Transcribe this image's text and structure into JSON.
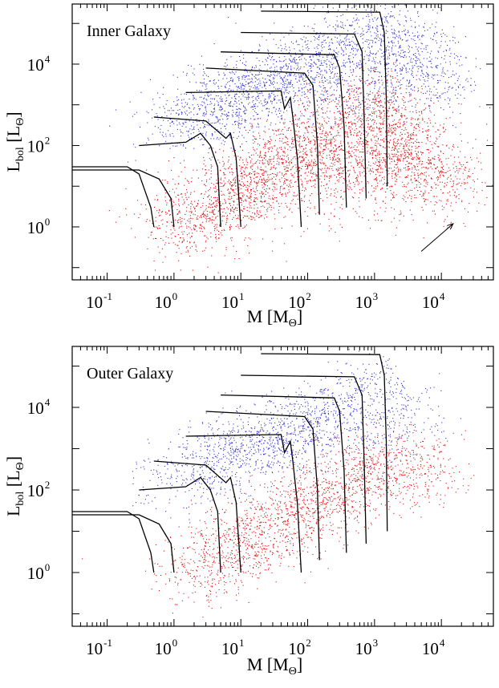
{
  "colors": {
    "blue_series": "#3333cc",
    "red_series": "#dd1111",
    "tracks": "#000000"
  },
  "chart_data": [
    {
      "type": "scatter",
      "panel_label": "Inner Galaxy",
      "xlabel": "M [M",
      "xlabel_sub": "Θ",
      "xlabel_close": "]",
      "ylabel": "L",
      "ylabel_sub": "bol",
      "ylabel_rest": " [L",
      "ylabel_sub2": "Θ",
      "ylabel_close": "]",
      "x_log": true,
      "y_log": true,
      "xlim": [
        0.03,
        60000
      ],
      "ylim": [
        0.05,
        300000
      ],
      "x_ticks": [
        {
          "base": "10",
          "exp": "-1",
          "value": 0.1
        },
        {
          "base": "10",
          "exp": "0",
          "value": 1
        },
        {
          "base": "10",
          "exp": "1",
          "value": 10
        },
        {
          "base": "10",
          "exp": "2",
          "value": 100
        },
        {
          "base": "10",
          "exp": "3",
          "value": 1000
        },
        {
          "base": "10",
          "exp": "4",
          "value": 10000
        }
      ],
      "y_ticks": [
        {
          "base": "10",
          "exp": "0",
          "value": 1
        },
        {
          "base": "10",
          "exp": "2",
          "value": 100
        },
        {
          "base": "10",
          "exp": "4",
          "value": 10000
        }
      ],
      "series": [
        {
          "color": "#3333cc",
          "points": [
            [
              1,
              300
            ],
            [
              5,
              1000
            ],
            [
              20,
              3000
            ],
            [
              100,
              10000
            ],
            [
              1000,
              100000
            ],
            [
              3000,
              30000
            ],
            [
              10000,
              3000
            ]
          ]
        },
        {
          "color": "#dd1111",
          "points": [
            [
              1,
              1
            ],
            [
              10,
              10
            ],
            [
              100,
              100
            ],
            [
              1000,
              1000
            ],
            [
              3000,
              100
            ],
            [
              10000,
              10
            ]
          ]
        }
      ],
      "tracks": [
        [
          [
            0.03,
            30
          ],
          [
            0.2,
            30
          ],
          [
            0.3,
            20
          ],
          [
            0.45,
            3
          ],
          [
            0.5,
            1
          ]
        ],
        [
          [
            0.03,
            25
          ],
          [
            0.3,
            25
          ],
          [
            0.6,
            15
          ],
          [
            0.9,
            5
          ],
          [
            1,
            1
          ]
        ],
        [
          [
            0.3,
            100
          ],
          [
            1.5,
            120
          ],
          [
            2.5,
            200
          ],
          [
            3.5,
            100
          ],
          [
            4.5,
            30
          ],
          [
            5,
            1
          ]
        ],
        [
          [
            0.5,
            500
          ],
          [
            3,
            400
          ],
          [
            6,
            150
          ],
          [
            7,
            200
          ],
          [
            8.5,
            50
          ],
          [
            10,
            1
          ]
        ],
        [
          [
            1.5,
            2000
          ],
          [
            40,
            2200
          ],
          [
            45,
            800
          ],
          [
            55,
            1500
          ],
          [
            60,
            500
          ],
          [
            70,
            50
          ],
          [
            80,
            1
          ]
        ],
        [
          [
            3,
            8000
          ],
          [
            90,
            6000
          ],
          [
            120,
            3000
          ],
          [
            140,
            100
          ],
          [
            150,
            2
          ]
        ],
        [
          [
            5,
            20000
          ],
          [
            250,
            17000
          ],
          [
            300,
            8000
          ],
          [
            350,
            300
          ],
          [
            380,
            3
          ]
        ],
        [
          [
            10,
            60000
          ],
          [
            500,
            55000
          ],
          [
            650,
            20000
          ],
          [
            700,
            500
          ],
          [
            750,
            5
          ]
        ],
        [
          [
            20,
            200000
          ],
          [
            1200,
            190000
          ],
          [
            1400,
            60000
          ],
          [
            1500,
            1500
          ],
          [
            1550,
            10
          ]
        ]
      ],
      "arrow": {
        "from": [
          5000,
          0.25
        ],
        "to": [
          15000,
          1.2
        ]
      }
    },
    {
      "type": "scatter",
      "panel_label": "Outer Galaxy",
      "xlabel": "M [M",
      "xlabel_sub": "Θ",
      "xlabel_close": "]",
      "ylabel": "L",
      "ylabel_sub": "bol",
      "ylabel_rest": " [L",
      "ylabel_sub2": "Θ",
      "ylabel_close": "]",
      "x_log": true,
      "y_log": true,
      "xlim": [
        0.03,
        60000
      ],
      "ylim": [
        0.05,
        300000
      ],
      "x_ticks": [
        {
          "base": "10",
          "exp": "-1",
          "value": 0.1
        },
        {
          "base": "10",
          "exp": "0",
          "value": 1
        },
        {
          "base": "10",
          "exp": "1",
          "value": 10
        },
        {
          "base": "10",
          "exp": "2",
          "value": 100
        },
        {
          "base": "10",
          "exp": "3",
          "value": 1000
        },
        {
          "base": "10",
          "exp": "4",
          "value": 10000
        }
      ],
      "y_ticks": [
        {
          "base": "10",
          "exp": "0",
          "value": 1
        },
        {
          "base": "10",
          "exp": "2",
          "value": 100
        },
        {
          "base": "10",
          "exp": "4",
          "value": 10000
        }
      ],
      "series": [
        {
          "color": "#3333cc",
          "points": [
            [
              1,
              200
            ],
            [
              5,
              500
            ],
            [
              20,
              1500
            ],
            [
              100,
              5000
            ],
            [
              1000,
              30000
            ],
            [
              3000,
              5000
            ]
          ]
        },
        {
          "color": "#dd1111",
          "points": [
            [
              2,
              1
            ],
            [
              10,
              5
            ],
            [
              100,
              50
            ],
            [
              1000,
              500
            ],
            [
              5000,
              300
            ]
          ]
        }
      ],
      "tracks": [
        [
          [
            0.03,
            30
          ],
          [
            0.2,
            30
          ],
          [
            0.3,
            20
          ],
          [
            0.45,
            3
          ],
          [
            0.5,
            1
          ]
        ],
        [
          [
            0.03,
            25
          ],
          [
            0.3,
            25
          ],
          [
            0.6,
            15
          ],
          [
            0.9,
            5
          ],
          [
            1,
            1
          ]
        ],
        [
          [
            0.3,
            100
          ],
          [
            1.5,
            120
          ],
          [
            2.5,
            200
          ],
          [
            3.5,
            100
          ],
          [
            4.5,
            30
          ],
          [
            5,
            1
          ]
        ],
        [
          [
            0.5,
            500
          ],
          [
            3,
            400
          ],
          [
            6,
            150
          ],
          [
            7,
            200
          ],
          [
            8.5,
            50
          ],
          [
            10,
            1
          ]
        ],
        [
          [
            1.5,
            2000
          ],
          [
            40,
            2200
          ],
          [
            45,
            800
          ],
          [
            55,
            1500
          ],
          [
            60,
            500
          ],
          [
            70,
            50
          ],
          [
            80,
            1
          ]
        ],
        [
          [
            3,
            8000
          ],
          [
            90,
            6000
          ],
          [
            120,
            3000
          ],
          [
            140,
            100
          ],
          [
            150,
            2
          ]
        ],
        [
          [
            5,
            20000
          ],
          [
            250,
            17000
          ],
          [
            300,
            8000
          ],
          [
            350,
            300
          ],
          [
            380,
            3
          ]
        ],
        [
          [
            10,
            60000
          ],
          [
            500,
            55000
          ],
          [
            650,
            20000
          ],
          [
            700,
            500
          ],
          [
            750,
            5
          ]
        ],
        [
          [
            20,
            200000
          ],
          [
            1200,
            190000
          ],
          [
            1400,
            60000
          ],
          [
            1500,
            1500
          ],
          [
            1550,
            10
          ]
        ]
      ]
    }
  ]
}
